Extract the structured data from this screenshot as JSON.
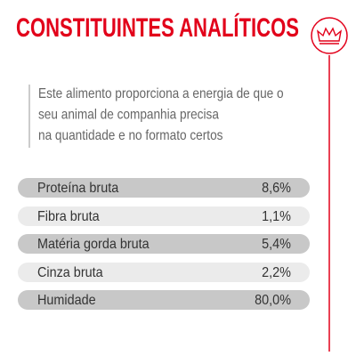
{
  "header": {
    "title": "CONSTITUINTES ANALÍTICOS"
  },
  "intro": {
    "lines": [
      "Este alimento proporciona a energia de que o",
      "seu animal de companhia precisa",
      "na quantidade e no formato certos"
    ]
  },
  "table": {
    "rows": [
      [
        "Proteína bruta",
        "8,6%"
      ],
      [
        "Fibra bruta",
        "1,1%"
      ],
      [
        "Matéria gorda bruta",
        "5,4%"
      ],
      [
        "Cinza bruta",
        "2,2%"
      ],
      [
        "Humidade",
        "80,0%"
      ]
    ]
  }
}
